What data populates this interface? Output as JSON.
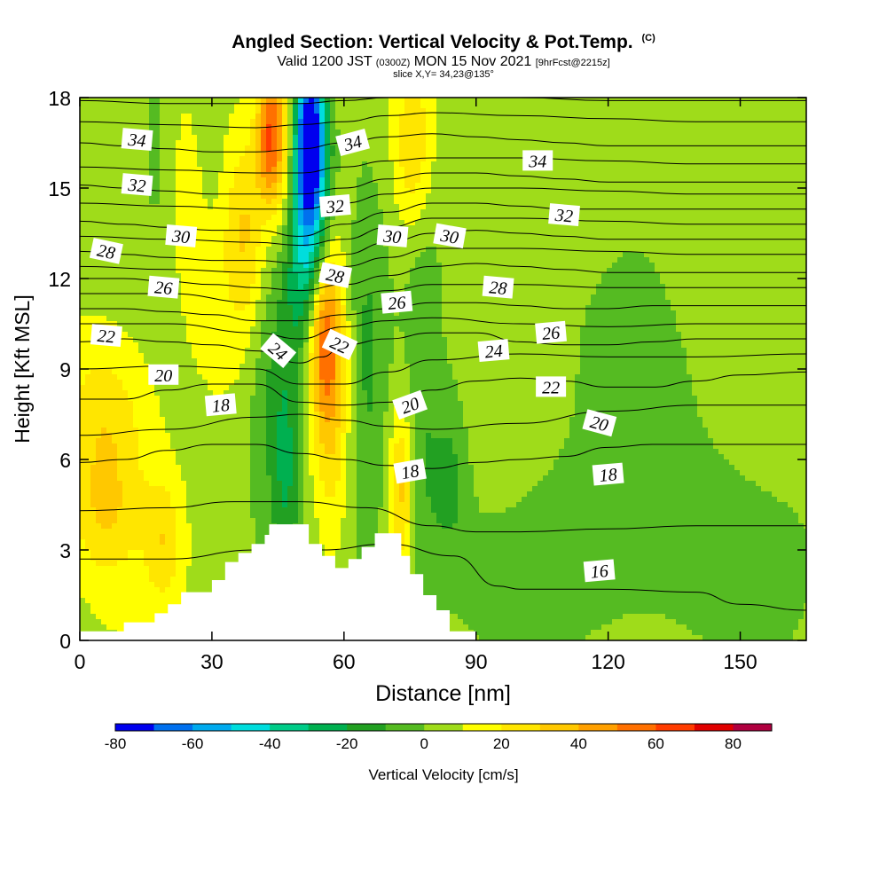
{
  "title": {
    "main": "Angled Section: Vertical Velocity & Pot.Temp.",
    "copyright": "(C)",
    "valid_prefix": "Valid 1200 JST",
    "valid_utc": "(0300Z)",
    "valid_date": "MON 15 Nov 2021",
    "forecast": "[9hrFcst@2215z]",
    "slice": "slice X,Y= 34,23@135°"
  },
  "colors": {
    "terrain": "#ffffff",
    "frame": "#000000",
    "contour": "#000000",
    "background": "#ffffff"
  },
  "chart_data": {
    "type": "heatmap",
    "title": "Angled Section: Vertical Velocity & Pot.Temp.",
    "xlabel": "Distance [nm]",
    "ylabel": "Height [Kft MSL]",
    "xlim": [
      0,
      165
    ],
    "ylim": [
      0,
      18
    ],
    "xticks": [
      0,
      30,
      60,
      90,
      120,
      150
    ],
    "yticks": [
      0,
      3,
      6,
      9,
      12,
      15,
      18
    ],
    "grid": false,
    "colorbar": {
      "label": "Vertical Velocity [cm/s]",
      "ticks": [
        -80,
        -60,
        -40,
        -20,
        0,
        20,
        40,
        60,
        80
      ],
      "bounds": [
        -80,
        -70,
        -60,
        -50,
        -40,
        -30,
        -20,
        -10,
        0,
        10,
        20,
        30,
        40,
        50,
        60,
        70,
        80,
        90
      ],
      "colors": [
        "#0000ee",
        "#0070ee",
        "#00aaee",
        "#00dddd",
        "#00cc88",
        "#00b050",
        "#22a022",
        "#55bb22",
        "#9fdc1a",
        "#ffff00",
        "#ffe600",
        "#ffc800",
        "#ffa000",
        "#ff7000",
        "#ff3c00",
        "#e00000",
        "#b00040",
        "#6a0090"
      ]
    },
    "terrain": {
      "x": [
        0,
        10,
        10,
        17,
        17,
        20,
        20,
        23,
        23,
        30,
        30,
        33,
        33,
        36,
        36,
        39,
        39,
        42,
        42,
        43,
        43,
        52,
        52,
        55,
        55,
        58,
        58,
        61,
        61,
        64,
        64,
        67,
        67,
        73,
        73,
        75,
        75,
        78,
        78,
        81,
        81,
        84,
        84,
        90,
        90
      ],
      "height": [
        0.3,
        0.3,
        0.6,
        0.6,
        0.9,
        0.9,
        1.2,
        1.2,
        1.6,
        1.6,
        2.0,
        2.0,
        2.6,
        2.6,
        2.9,
        2.9,
        3.2,
        3.2,
        3.5,
        3.5,
        3.85,
        3.85,
        3.2,
        3.2,
        2.8,
        2.8,
        2.4,
        2.4,
        2.7,
        2.7,
        3.1,
        3.1,
        3.55,
        3.55,
        2.8,
        2.8,
        2.2,
        2.2,
        1.5,
        1.5,
        1.0,
        1.0,
        0.3,
        0.3,
        0
      ]
    },
    "wvel_features": [
      {
        "x": 52,
        "y": 16.8,
        "sx": 2.5,
        "sy": 1.8,
        "v": -75
      },
      {
        "x": 52,
        "y": 14.5,
        "sx": 3.5,
        "sy": 2.8,
        "v": -48
      },
      {
        "x": 52,
        "y": 12.3,
        "sx": 4,
        "sy": 2,
        "v": -20
      },
      {
        "x": 44,
        "y": 8.5,
        "sx": 4.5,
        "sy": 3.5,
        "v": -20
      },
      {
        "x": 47,
        "y": 5.5,
        "sx": 2.2,
        "sy": 2.5,
        "v": -18
      },
      {
        "x": 65,
        "y": 9.5,
        "sx": 3,
        "sy": 5,
        "v": -14
      },
      {
        "x": 78,
        "y": 8,
        "sx": 2.5,
        "sy": 6,
        "v": -10
      },
      {
        "x": 84,
        "y": 5.5,
        "sx": 3,
        "sy": 2,
        "v": -15
      },
      {
        "x": 17,
        "y": 16.5,
        "sx": 2,
        "sy": 2,
        "v": -14
      },
      {
        "x": 30,
        "y": 16,
        "sx": 2,
        "sy": 2.5,
        "v": -8
      },
      {
        "x": 47,
        "y": 16.3,
        "sx": 3,
        "sy": 2.5,
        "v": 33
      },
      {
        "x": 43,
        "y": 16.8,
        "sx": 2,
        "sy": 1.5,
        "v": 45
      },
      {
        "x": 76,
        "y": 16.3,
        "sx": 3,
        "sy": 2,
        "v": 25
      },
      {
        "x": 57,
        "y": 9,
        "sx": 3,
        "sy": 3.5,
        "v": 33
      },
      {
        "x": 55,
        "y": 10.5,
        "sx": 2.5,
        "sy": 2,
        "v": 40
      },
      {
        "x": 73,
        "y": 5,
        "sx": 2,
        "sy": 2,
        "v": 30
      },
      {
        "x": 6,
        "y": 7.2,
        "sx": 7,
        "sy": 2,
        "v": 22
      },
      {
        "x": 6,
        "y": 4,
        "sx": 6,
        "sy": 1.5,
        "v": 18
      },
      {
        "x": 19,
        "y": 3.3,
        "sx": 3,
        "sy": 1.5,
        "v": 20
      },
      {
        "x": 30,
        "y": 13,
        "sx": 6,
        "sy": 3,
        "v": 10
      },
      {
        "x": 38,
        "y": 13.5,
        "sx": 3,
        "sy": 2.5,
        "v": 22
      },
      {
        "x": 103,
        "y": 11.5,
        "sx": 30,
        "sy": 6,
        "v": -6
      },
      {
        "x": 120,
        "y": 2.5,
        "sx": 40,
        "sy": 2.5,
        "v": -9
      },
      {
        "x": 140,
        "y": 8,
        "sx": 25,
        "sy": 6,
        "v": -4
      },
      {
        "x": 142,
        "y": 14.5,
        "sx": 7,
        "sy": 3,
        "v": 6
      },
      {
        "x": 112,
        "y": 15.5,
        "sx": 8,
        "sy": 3,
        "v": 4
      },
      {
        "x": 95,
        "y": 7.5,
        "sx": 8,
        "sy": 3,
        "v": 5
      },
      {
        "x": 155,
        "y": 17,
        "sx": 5,
        "sy": 2,
        "v": -3
      }
    ],
    "theta_isotherms": [
      {
        "value": 16,
        "x": [
          0,
          20,
          40,
          55,
          70,
          85,
          95,
          100,
          120,
          140,
          150,
          165
        ],
        "y": [
          2.7,
          2.7,
          3.0,
          3.0,
          3.2,
          2.8,
          1.8,
          1.7,
          1.7,
          1.6,
          1.2,
          1.0
        ]
      },
      {
        "value": 17,
        "x": [
          0,
          20,
          35,
          50,
          65,
          80,
          90,
          100,
          120,
          140,
          165
        ],
        "y": [
          4.3,
          4.4,
          4.6,
          4.6,
          4.4,
          3.8,
          3.6,
          3.6,
          3.7,
          3.8,
          3.8
        ]
      },
      {
        "value": 18,
        "x": [
          0,
          10,
          20,
          30,
          40,
          50,
          60,
          70,
          80,
          90,
          100,
          110,
          120,
          130,
          140,
          150,
          165
        ],
        "y": [
          5.9,
          6.0,
          6.3,
          6.5,
          6.5,
          6.2,
          6.0,
          5.8,
          5.7,
          5.9,
          6.0,
          6.1,
          6.4,
          6.5,
          6.5,
          6.5,
          6.5
        ]
      },
      {
        "value": 19,
        "x": [
          0,
          20,
          40,
          50,
          60,
          70,
          80,
          100,
          120,
          140,
          165
        ],
        "y": [
          6.8,
          7.0,
          7.4,
          7.5,
          7.3,
          7.1,
          7.0,
          7.2,
          7.6,
          7.8,
          7.8
        ]
      },
      {
        "value": 20,
        "x": [
          0,
          10,
          20,
          30,
          40,
          50,
          60,
          70,
          80,
          90,
          100,
          110,
          120,
          130,
          140,
          150,
          165
        ],
        "y": [
          8.0,
          8.0,
          8.3,
          8.5,
          8.5,
          7.9,
          7.8,
          7.9,
          8.3,
          8.6,
          8.7,
          8.6,
          8.4,
          8.4,
          8.6,
          8.8,
          8.9
        ]
      },
      {
        "value": 21,
        "x": [
          0,
          20,
          40,
          50,
          60,
          70,
          80,
          100,
          120,
          140,
          165
        ],
        "y": [
          9.0,
          9.1,
          9.0,
          8.5,
          8.5,
          8.9,
          9.3,
          9.5,
          9.4,
          9.4,
          9.5
        ]
      },
      {
        "value": 22,
        "x": [
          0,
          10,
          20,
          30,
          40,
          50,
          55,
          60,
          70,
          80,
          90,
          100,
          110,
          120,
          130,
          140,
          150,
          165
        ],
        "y": [
          9.9,
          10.0,
          9.9,
          9.8,
          9.6,
          9.2,
          9.4,
          9.8,
          10.0,
          10.2,
          10.2,
          9.9,
          9.8,
          9.8,
          9.9,
          10.0,
          10.0,
          10.0
        ]
      },
      {
        "value": 23,
        "x": [
          0,
          20,
          40,
          50,
          60,
          70,
          80,
          100,
          120,
          140,
          165
        ],
        "y": [
          10.5,
          10.5,
          10.2,
          10.0,
          10.4,
          10.6,
          10.7,
          10.5,
          10.4,
          10.5,
          10.5
        ]
      },
      {
        "value": 24,
        "x": [
          0,
          10,
          20,
          30,
          40,
          50,
          60,
          70,
          80,
          90,
          100,
          110,
          120,
          130,
          140,
          150,
          165
        ],
        "y": [
          11.0,
          11.0,
          10.9,
          10.8,
          10.6,
          10.6,
          10.8,
          11.0,
          11.2,
          11.2,
          11.1,
          11.0,
          11.0,
          11.1,
          11.1,
          11.1,
          11.1
        ]
      },
      {
        "value": 25,
        "x": [
          0,
          20,
          40,
          50,
          60,
          70,
          80,
          100,
          120,
          140,
          165
        ],
        "y": [
          11.5,
          11.5,
          11.2,
          11.2,
          11.3,
          11.6,
          11.8,
          11.8,
          11.7,
          11.7,
          11.7
        ]
      },
      {
        "value": 26,
        "x": [
          0,
          10,
          20,
          30,
          40,
          50,
          60,
          70,
          80,
          90,
          100,
          110,
          120,
          130,
          140,
          150,
          165
        ],
        "y": [
          12.0,
          12.0,
          11.9,
          11.8,
          11.7,
          11.6,
          11.8,
          12.1,
          12.4,
          12.5,
          12.4,
          12.3,
          12.2,
          12.2,
          12.2,
          12.2,
          12.2
        ]
      },
      {
        "value": 27,
        "x": [
          0,
          20,
          40,
          50,
          60,
          70,
          80,
          100,
          120,
          140,
          165
        ],
        "y": [
          12.4,
          12.3,
          12.2,
          12.2,
          12.4,
          12.7,
          13.0,
          13.0,
          12.9,
          12.8,
          12.8
        ]
      },
      {
        "value": 28,
        "x": [
          0,
          10,
          20,
          30,
          40,
          50,
          60,
          70,
          80,
          90,
          100,
          110,
          120,
          130,
          140,
          150,
          165
        ],
        "y": [
          12.9,
          12.8,
          12.7,
          12.6,
          12.6,
          12.5,
          12.8,
          13.2,
          13.5,
          13.6,
          13.5,
          13.4,
          13.3,
          13.3,
          13.3,
          13.3,
          13.3
        ]
      },
      {
        "value": 29,
        "x": [
          0,
          20,
          40,
          50,
          60,
          70,
          80,
          100,
          120,
          140,
          165
        ],
        "y": [
          13.4,
          13.3,
          13.2,
          13.1,
          13.3,
          13.7,
          14.0,
          14.0,
          13.9,
          13.8,
          13.8
        ]
      },
      {
        "value": 30,
        "x": [
          0,
          10,
          20,
          30,
          40,
          50,
          60,
          70,
          80,
          90,
          100,
          110,
          120,
          130,
          140,
          150,
          165
        ],
        "y": [
          13.9,
          13.8,
          13.7,
          13.6,
          13.6,
          13.4,
          13.8,
          14.2,
          14.5,
          14.5,
          14.4,
          14.3,
          14.3,
          14.3,
          14.3,
          14.3,
          14.3
        ]
      },
      {
        "value": 31,
        "x": [
          0,
          20,
          40,
          50,
          60,
          70,
          80,
          100,
          120,
          140,
          165
        ],
        "y": [
          14.5,
          14.4,
          14.3,
          14.3,
          14.5,
          14.8,
          15.0,
          15.0,
          14.9,
          14.8,
          14.8
        ]
      },
      {
        "value": 32,
        "x": [
          0,
          10,
          20,
          30,
          40,
          50,
          60,
          70,
          80,
          90,
          100,
          110,
          120,
          130,
          140,
          150,
          165
        ],
        "y": [
          15.1,
          15.0,
          14.9,
          14.8,
          14.8,
          14.8,
          15.0,
          15.3,
          15.5,
          15.5,
          15.4,
          15.3,
          15.2,
          15.2,
          15.2,
          15.2,
          15.2
        ]
      },
      {
        "value": 33,
        "x": [
          0,
          20,
          40,
          50,
          60,
          70,
          80,
          100,
          120,
          140,
          165
        ],
        "y": [
          15.7,
          15.6,
          15.5,
          15.5,
          15.7,
          15.9,
          16.0,
          16.0,
          15.9,
          15.8,
          15.8
        ]
      },
      {
        "value": 34,
        "x": [
          0,
          10,
          20,
          30,
          40,
          50,
          60,
          70,
          80,
          90,
          100,
          110,
          120,
          130,
          140,
          150,
          165
        ],
        "y": [
          16.5,
          16.4,
          16.3,
          16.2,
          16.2,
          16.3,
          16.5,
          16.7,
          16.8,
          16.7,
          16.6,
          16.5,
          16.4,
          16.4,
          16.4,
          16.4,
          16.4
        ]
      },
      {
        "value": 35,
        "x": [
          0,
          20,
          40,
          50,
          60,
          70,
          80,
          100,
          120,
          140,
          165
        ],
        "y": [
          17.2,
          17.1,
          17.0,
          17.1,
          17.2,
          17.4,
          17.5,
          17.4,
          17.3,
          17.2,
          17.2
        ]
      },
      {
        "value": 36,
        "x": [
          0,
          20,
          40,
          50,
          60,
          70,
          80,
          100,
          120,
          140,
          165
        ],
        "y": [
          17.9,
          17.8,
          17.8,
          17.8,
          17.9,
          18.0,
          18.0,
          18.0,
          17.9,
          17.9,
          17.9
        ]
      }
    ],
    "contour_labels": [
      {
        "text": "34",
        "x": 13,
        "y": 16.6,
        "angle": 5
      },
      {
        "text": "32",
        "x": 13,
        "y": 15.1,
        "angle": 5
      },
      {
        "text": "30",
        "x": 23,
        "y": 13.4,
        "angle": 5
      },
      {
        "text": "28",
        "x": 6,
        "y": 12.9,
        "angle": 12
      },
      {
        "text": "26",
        "x": 19,
        "y": 11.7,
        "angle": 5
      },
      {
        "text": "22",
        "x": 6,
        "y": 10.1,
        "angle": 5
      },
      {
        "text": "20",
        "x": 19,
        "y": 8.8,
        "angle": 0
      },
      {
        "text": "18",
        "x": 32,
        "y": 7.8,
        "angle": -5
      },
      {
        "text": "24",
        "x": 45,
        "y": 9.6,
        "angle": 40
      },
      {
        "text": "22",
        "x": 59,
        "y": 9.8,
        "angle": 25
      },
      {
        "text": "28",
        "x": 58,
        "y": 12.1,
        "angle": 12
      },
      {
        "text": "32",
        "x": 58,
        "y": 14.4,
        "angle": -5
      },
      {
        "text": "34",
        "x": 62,
        "y": 16.5,
        "angle": -15
      },
      {
        "text": "30",
        "x": 71,
        "y": 13.4,
        "angle": 5
      },
      {
        "text": "26",
        "x": 72,
        "y": 11.2,
        "angle": -5
      },
      {
        "text": "20",
        "x": 75,
        "y": 7.8,
        "angle": -20
      },
      {
        "text": "18",
        "x": 75,
        "y": 5.6,
        "angle": -10
      },
      {
        "text": "30",
        "x": 84,
        "y": 13.4,
        "angle": 10
      },
      {
        "text": "28",
        "x": 95,
        "y": 11.7,
        "angle": 5
      },
      {
        "text": "24",
        "x": 94,
        "y": 9.6,
        "angle": -5
      },
      {
        "text": "34",
        "x": 104,
        "y": 15.9,
        "angle": 0
      },
      {
        "text": "32",
        "x": 110,
        "y": 14.1,
        "angle": 5
      },
      {
        "text": "26",
        "x": 107,
        "y": 10.2,
        "angle": -5
      },
      {
        "text": "22",
        "x": 107,
        "y": 8.4,
        "angle": 0
      },
      {
        "text": "20",
        "x": 118,
        "y": 7.2,
        "angle": 15
      },
      {
        "text": "18",
        "x": 120,
        "y": 5.5,
        "angle": -5
      },
      {
        "text": "16",
        "x": 118,
        "y": 2.3,
        "angle": -5
      }
    ]
  }
}
